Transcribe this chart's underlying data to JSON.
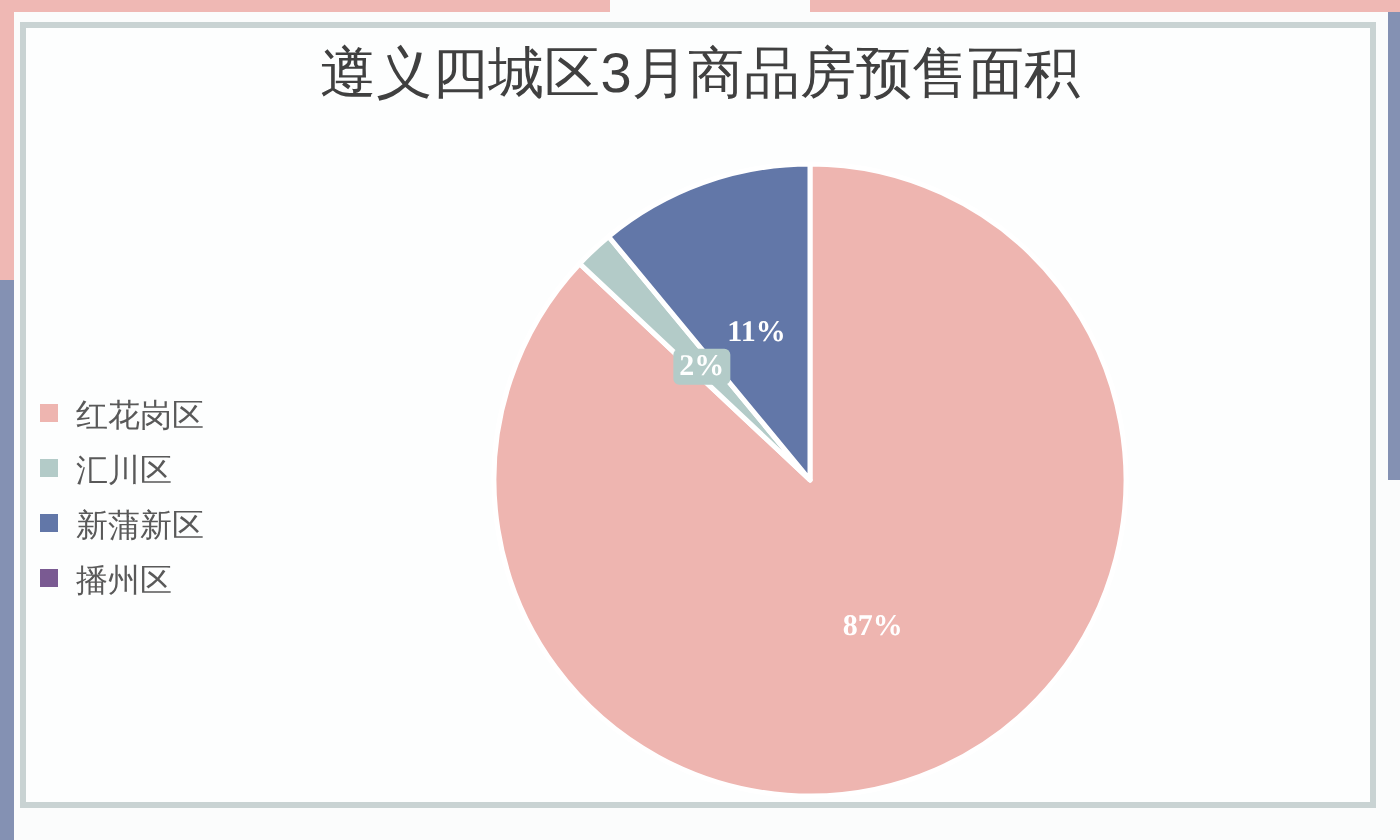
{
  "chart_data": {
    "type": "pie",
    "title": "遵义四城区3月商品房预售面积",
    "categories": [
      "红花岗区",
      "汇川区",
      "新蒲新区",
      "播州区"
    ],
    "values": [
      87,
      2,
      11,
      0
    ],
    "colors": [
      "#eeb5b0",
      "#b3cbc8",
      "#6277a8",
      "#7a5a92"
    ],
    "value_labels": [
      "87%",
      "2%",
      "11%",
      null
    ],
    "legend": "left"
  }
}
